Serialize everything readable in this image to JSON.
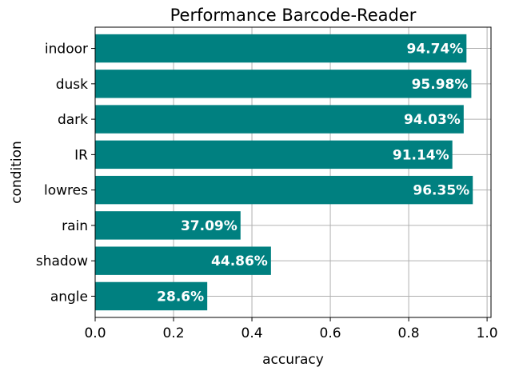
{
  "chart_data": {
    "type": "bar",
    "orientation": "horizontal",
    "title": "Performance Barcode-Reader",
    "xlabel": "accuracy",
    "ylabel": "condition",
    "categories": [
      "angle",
      "shadow",
      "rain",
      "lowres",
      "IR",
      "dark",
      "dusk",
      "indoor"
    ],
    "values": [
      0.286,
      0.4486,
      0.3709,
      0.9635,
      0.9114,
      0.9403,
      0.9598,
      0.9474
    ],
    "data_labels": [
      "28.6%",
      "44.86%",
      "37.09%",
      "96.35%",
      "91.14%",
      "94.03%",
      "95.98%",
      "94.74%"
    ],
    "xlim": [
      0.0,
      1.01
    ],
    "xticks": [
      0.0,
      0.2,
      0.4,
      0.6,
      0.8,
      1.0
    ],
    "xtick_labels": [
      "0.0",
      "0.2",
      "0.4",
      "0.6",
      "0.8",
      "1.0"
    ],
    "grid": true,
    "bar_color": "#008080",
    "label_color": "#ffffff"
  }
}
